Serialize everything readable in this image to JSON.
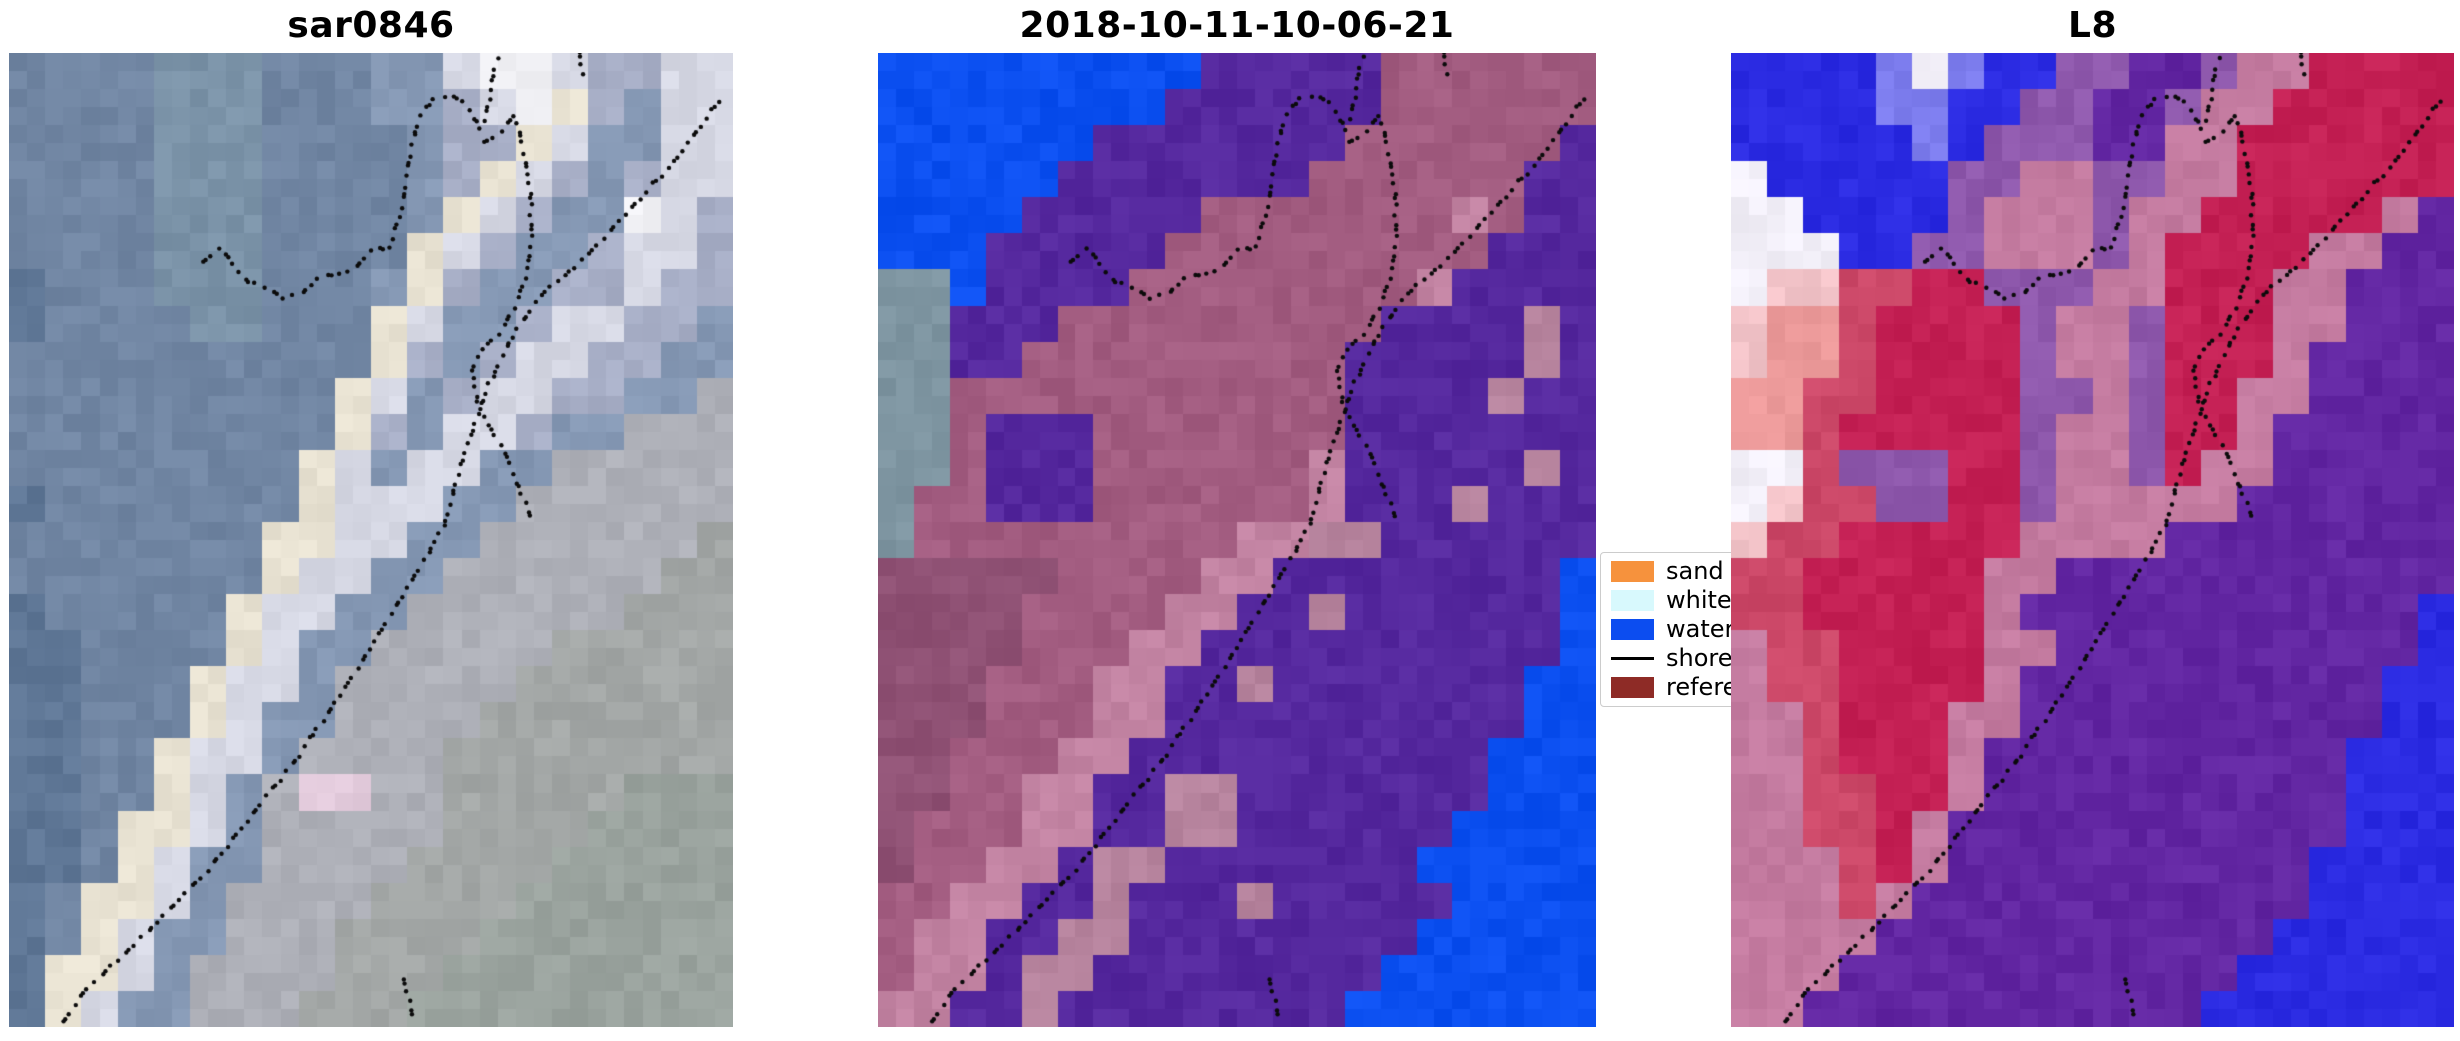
{
  "chart_data": {
    "type": "image-grid",
    "description": "Three-panel satellite shoreline-detection figure with dotted shoreline overlays and a class legend",
    "panels": [
      {
        "title": "sar0846",
        "palette": {
          "A": "#5F7796",
          "B": "#7186A3",
          "C": "#7B93A8",
          "D": "#8598B4",
          "E": "#A7AEC6",
          "F": "#D6D8E4",
          "G": "#F2F2F6",
          "H": "#E8E2D2",
          "I": "#AEB0B8",
          "J": "#A3A7A6",
          "K": "#9AA39E",
          "P": "#E3CBDC"
        },
        "rows": [
          "BBBBCCCBBBDDFGGFEEFF",
          "BBBBCCCBBBDDEFGHEDFF",
          "BBBBCCCBBBBDEEHFDDFF",
          "BBBBCCCBBBBDEHFEDEFF",
          "BBBBCCCBBBBDHFEDDGFE",
          "BBBBCCCBBBBHFEDDEFFE",
          "ABBBCCCBBBDHEDDEEFEE",
          "ABBBBCCBBBHFDDEFFEED",
          "BBBBBBBBBBHEDEFFEEDD",
          "BBBBBBBBBHFDEFFEEDDI",
          "BBBBBBBBBHEDFFEDDIII",
          "BBBBBBBBHFDFFDDIIIII",
          "ABBBBBBBHFFFDDIIIIII",
          "BBBBBBBHHFFDDIIIIIIJ",
          "BBBBBBBHFFDDIIIIIIJJ",
          "ABBBBBHFFDDIIIIIIJJJ",
          "AABBBBHFDDIIIIIJJJJJ",
          "AABBBHFFDIIIIIJJJJJJ",
          "AABBBHFDDIIIIJJJJJJJ",
          "AABBHFFDIIIIJJJJJJJJ",
          "AABBHFDIPPIIJJJJJKKK",
          "AABHHFDIIIIIJJJJKKKK",
          "AABHFDDIIIIJJJJKKKKK",
          "ABHHFDIIIIJJJJKKKKKK",
          "ABHFDDIIIJJJJKKKKKKK",
          "AHHFDIIIIJJJKKKKKKKK",
          "AHFDDIIIJJJKKKKKKKKK"
        ]
      },
      {
        "title": "2018-10-11-10-06-21",
        "palette": {
          "W": "#0B4FF0",
          "T": "#7E95A1",
          "U": "#55289E",
          "M": "#A25C80",
          "N": "#8F5174",
          "R": "#C283A2",
          "L": "#B7849E"
        },
        "rows": [
          "WWWWWWWWWUUUUUMMMMMM",
          "WWWWWWWWUUUUUUMMMMMM",
          "WWWWWWUUUUUUUMMMMMMU",
          "WWWWWUUUUUUUMMMMMMUU",
          "WWWWUUUUUMMMMMMMRMUU",
          "WWWUUUUUMMMMMMMMMUUU",
          "TTWUUUUMMMMMMMMRUUUU",
          "TTUUUMMMMMMMMMUUUULU",
          "TTUUMMMMMMMMMUUUUULU",
          "TTMMMMMMMMMMMUUUULUU",
          "TTMUUUMMMMMMMUUUUUUU",
          "TTMUUUMMMMMMRUUUUULU",
          "TMMUUUMMMMMMRUUULUUU",
          "TMMMMMMMMMRRLLUUUUUU",
          "NNNNNMMMMRRUUUUUUUUW",
          "NNNNMMMMRRUULUUUUUUW",
          "NNNNMMMRRUUUUUUUUUUW",
          "NNNMMMRRUULUUUUUUUWW",
          "NNNMMMRRUUUUUUUUUUWW",
          "NNMMMRRUUUUUUUUUUWWW",
          "NNMMRRUULLUUUUUUUWWW",
          "NMMMRRUULLUUUUUUWWWW",
          "NMMRRULLUUUUUUUWWWWW",
          "MMRRUULUUULUUUUUWWWW",
          "MRRUULLUUUUUUUUWWWWW",
          "MRRULLUUUUUUUUWWWWWW",
          "RRUULUUUUUUUUWWWWWWW"
        ]
      },
      {
        "title": "L8",
        "palette": {
          "A": "#2B2BE2",
          "B": "#7D7DEE",
          "C": "#F2EFF8",
          "D": "#F2C3C8",
          "E": "#EC9A9A",
          "F": "#CC4868",
          "G": "#C42054",
          "H": "#6226A2",
          "I": "#8E58AC",
          "J": "#C47BA0"
        },
        "rows": [
          "AAAABCBAAIIHHIJJGGGG",
          "AAAABBAAIIHHIJJGGGGG",
          "AAAAABAIIIHHJJGGGGGG",
          "CAAAAAIIJJIIJJGGGGGG",
          "CCAAAAIJJJIJJGGGGGJH",
          "CCCAAIIJJJIJGGGGJJHH",
          "CDDFFGGIIIJJGGGJJHHH",
          "DEEFGGGGIJJIGGGJJHHH",
          "DEEFGGGGIJJIGGGJHHHH",
          "EEFFGGGGIIJIGGJJHHHH",
          "EEFGGGGGIJJIGGJHHHHH",
          "CCFIIIGGIJJIGJJHHHHH",
          "CDFFIIGGIJJJJJHHHHHH",
          "DFFGGGGGJJJJHHHHHHHH",
          "FFGGGGGJJHHHHHHHHHHH",
          "FFGGGGGJHHHHHHHHHHHA",
          "JFFGGGGJJHHHHHHHHHHA",
          "JFFGGGGJHHHHHHHHHHAA",
          "JJFGGGJJHHHHHHHHHHAA",
          "JJFGGGJHHHHHHHHHHAAA",
          "JJFFGGJHHHHHHHHHHAAA",
          "JJFFGJHHHHHHHHHHHAAA",
          "JJJFGJHHHHHHHHHHAAAA",
          "JJJFJHHHHHHHHHHHAAAA",
          "JJJJHHHHHHHHHHHAAAAA",
          "JJJHHHHHHHHHHHAAAAAA",
          "JJHHHHHHHHHHHAAAAAAA"
        ]
      }
    ],
    "shorelines": {
      "dot_color": "#0b0b0b",
      "dot_radius": 2.2,
      "dot_spacing": 10.5,
      "paths": {
        "main": [
          [
            0.075,
            0.995
          ],
          [
            0.105,
            0.962
          ],
          [
            0.155,
            0.928
          ],
          [
            0.215,
            0.885
          ],
          [
            0.275,
            0.838
          ],
          [
            0.34,
            0.778
          ],
          [
            0.4,
            0.722
          ],
          [
            0.455,
            0.662
          ],
          [
            0.515,
            0.592
          ],
          [
            0.575,
            0.518
          ],
          [
            0.6,
            0.487
          ],
          [
            0.617,
            0.44
          ],
          [
            0.64,
            0.39
          ],
          [
            0.662,
            0.342
          ],
          [
            0.695,
            0.29
          ],
          [
            0.737,
            0.248
          ],
          [
            0.798,
            0.208
          ],
          [
            0.858,
            0.16
          ],
          [
            0.92,
            0.11
          ],
          [
            0.985,
            0.045
          ]
        ],
        "lagoon_outer": [
          [
            0.268,
            0.215
          ],
          [
            0.29,
            0.2
          ],
          [
            0.31,
            0.215
          ],
          [
            0.33,
            0.235
          ],
          [
            0.355,
            0.24
          ],
          [
            0.38,
            0.252
          ],
          [
            0.405,
            0.246
          ],
          [
            0.43,
            0.23
          ],
          [
            0.457,
            0.227
          ],
          [
            0.478,
            0.222
          ],
          [
            0.5,
            0.2
          ],
          [
            0.523,
            0.202
          ],
          [
            0.538,
            0.17
          ],
          [
            0.548,
            0.138
          ],
          [
            0.553,
            0.105
          ],
          [
            0.565,
            0.068
          ],
          [
            0.588,
            0.047
          ],
          [
            0.61,
            0.043
          ],
          [
            0.633,
            0.053
          ],
          [
            0.652,
            0.078
          ],
          [
            0.664,
            0.046
          ],
          [
            0.671,
            0.015
          ],
          [
            0.677,
            0.0
          ]
        ],
        "lagoon_inner": [
          [
            0.656,
            0.092
          ],
          [
            0.678,
            0.082
          ],
          [
            0.7,
            0.062
          ],
          [
            0.708,
            0.092
          ],
          [
            0.716,
            0.122
          ],
          [
            0.721,
            0.157
          ],
          [
            0.722,
            0.197
          ],
          [
            0.712,
            0.232
          ],
          [
            0.697,
            0.262
          ],
          [
            0.678,
            0.287
          ],
          [
            0.656,
            0.302
          ],
          [
            0.639,
            0.327
          ],
          [
            0.646,
            0.357
          ],
          [
            0.659,
            0.377
          ],
          [
            0.673,
            0.395
          ],
          [
            0.688,
            0.415
          ],
          [
            0.7,
            0.437
          ],
          [
            0.712,
            0.46
          ],
          [
            0.722,
            0.48
          ]
        ],
        "bottom_spur": [
          [
            0.545,
            0.952
          ],
          [
            0.553,
            0.972
          ],
          [
            0.558,
            0.993
          ]
        ],
        "top_spur": [
          [
            0.788,
            0.0
          ],
          [
            0.792,
            0.022
          ]
        ]
      }
    },
    "legend": {
      "entries": [
        {
          "label": "sand",
          "color": "#F6923D",
          "style": "patch"
        },
        {
          "label": "whitewater",
          "color": "#D8F9FD",
          "style": "patch"
        },
        {
          "label": "water",
          "color": "#0C4DF0",
          "style": "patch"
        },
        {
          "label": "shoreline",
          "color": "#000000",
          "style": "line"
        },
        {
          "label": "reference shoreline",
          "color": "#8E2B26",
          "style": "patch"
        }
      ]
    }
  }
}
